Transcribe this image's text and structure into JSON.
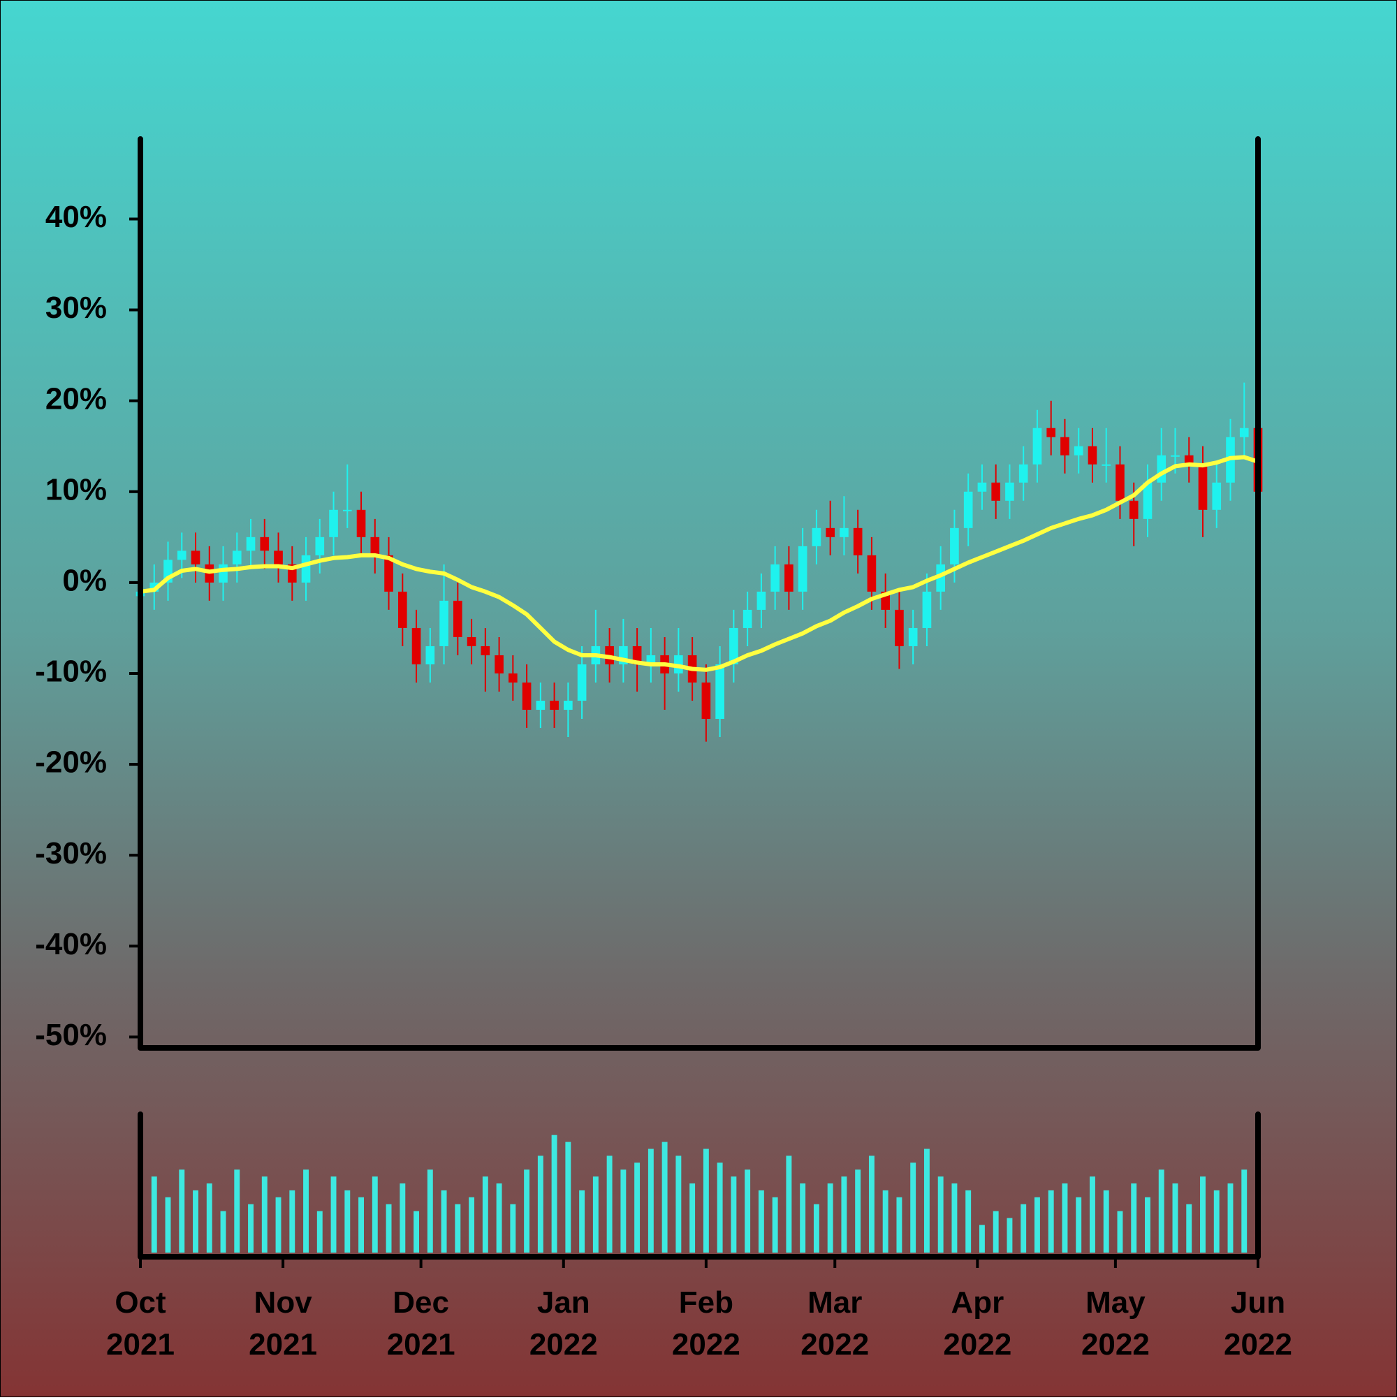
{
  "chart_data": {
    "type": "candlestick",
    "x": [
      0,
      3,
      6,
      9,
      12,
      15,
      18,
      21,
      24,
      27,
      30,
      33,
      36,
      39,
      42,
      45,
      48,
      51,
      54,
      57,
      60,
      63,
      66,
      69,
      72,
      75,
      78,
      81,
      84,
      87,
      90,
      93,
      96,
      99,
      102,
      105,
      108,
      111,
      114,
      117,
      120,
      123,
      126,
      129,
      132,
      135,
      138,
      141,
      144,
      147,
      150,
      153,
      156,
      159,
      162,
      165,
      168,
      171,
      174,
      177,
      180,
      183,
      186,
      189,
      192,
      195,
      198,
      201,
      204,
      207,
      210,
      213,
      216,
      219,
      222,
      225,
      228,
      231,
      234,
      237,
      240,
      243
    ],
    "open": [
      -1.5,
      -1,
      0,
      2.5,
      3.5,
      2,
      0,
      2,
      3.5,
      5,
      3.5,
      2,
      0,
      3,
      5,
      8,
      8,
      5,
      3,
      -1,
      -5,
      -9,
      -7,
      -2,
      -6,
      -7,
      -8,
      -10,
      -11,
      -14,
      -13,
      -14,
      -13,
      -9,
      -7,
      -9,
      -7,
      -9,
      -8,
      -10,
      -8,
      -11,
      -15,
      -9,
      -5,
      -3,
      -1,
      2,
      -1,
      4,
      6,
      5,
      6,
      3,
      -1,
      -3,
      -7,
      -5,
      -1,
      2,
      6,
      10,
      11,
      9,
      11,
      13,
      17,
      16,
      14,
      15,
      13,
      13,
      9,
      7,
      11,
      14,
      14,
      13,
      8,
      11,
      16,
      17
    ],
    "high": [
      1,
      2,
      4.5,
      5.5,
      5.5,
      4,
      4,
      5.5,
      7,
      7,
      5.5,
      4,
      5,
      7,
      10,
      13,
      10,
      7,
      5,
      1,
      -3,
      -5,
      2,
      0,
      -4,
      -5,
      -6,
      -8,
      -9,
      -11,
      -11,
      -11,
      -7,
      -3,
      -5,
      -4,
      -5,
      -5,
      -6,
      -5,
      -6,
      -9,
      -7,
      -3,
      -1,
      1,
      4,
      4,
      6,
      8,
      9,
      9.5,
      8,
      5,
      1,
      -1,
      -3,
      1,
      4,
      8,
      12,
      13,
      13,
      13,
      15,
      19,
      20,
      18,
      17,
      17,
      17,
      15,
      11,
      13,
      17,
      17,
      16,
      15,
      13,
      18,
      22,
      19
    ],
    "low": [
      -3.5,
      -3,
      -2,
      0.5,
      0,
      -2,
      -2,
      0,
      1.5,
      1.5,
      0,
      -2,
      -2,
      1,
      3,
      6,
      3,
      1,
      -3,
      -7,
      -11,
      -11,
      -9,
      -8,
      -9,
      -12,
      -12,
      -13,
      -16,
      -16,
      -16,
      -17,
      -15,
      -11,
      -11,
      -11,
      -12,
      -11,
      -14,
      -12,
      -13,
      -17.5,
      -17,
      -11,
      -7,
      -5,
      -3,
      -3,
      -3,
      2,
      3,
      3,
      1,
      -3,
      -5,
      -9.5,
      -9,
      -7,
      -3,
      0,
      4,
      8,
      7,
      7,
      9,
      11,
      14,
      12,
      12,
      11,
      11,
      7,
      4,
      5,
      9,
      12,
      11,
      5,
      6,
      9,
      14,
      7.5
    ],
    "close": [
      -1,
      0,
      2.5,
      3.5,
      2,
      0,
      2,
      3.5,
      5,
      3.5,
      2,
      0,
      3,
      5,
      8,
      8,
      5,
      3,
      -1,
      -5,
      -9,
      -7,
      -2,
      -6,
      -7,
      -8,
      -10,
      -11,
      -14,
      -13,
      -14,
      -13,
      -9,
      -7,
      -9,
      -7,
      -9,
      -8,
      -10,
      -8,
      -11,
      -15,
      -9,
      -5,
      -3,
      -1,
      2,
      -1,
      4,
      6,
      5,
      6,
      3,
      -1,
      -3,
      -7,
      -5,
      -1,
      2,
      6,
      10,
      11,
      9,
      11,
      13,
      17,
      16,
      14,
      15,
      13,
      13,
      9,
      7,
      11,
      14,
      14,
      13,
      8,
      11,
      16,
      17,
      10
    ],
    "up_color": "#1ff2ee",
    "down_color": "#e00000",
    "moving_average": {
      "color": "#ffff40",
      "values": [
        -1,
        -0.8,
        0.5,
        1.3,
        1.5,
        1.2,
        1.4,
        1.5,
        1.7,
        1.8,
        1.8,
        1.6,
        2,
        2.4,
        2.7,
        2.8,
        3,
        3,
        2.7,
        2,
        1.5,
        1.2,
        1,
        0.3,
        -0.5,
        -1,
        -1.6,
        -2.5,
        -3.5,
        -5,
        -6.5,
        -7.4,
        -8,
        -8,
        -8.2,
        -8.5,
        -8.8,
        -9,
        -9,
        -9.2,
        -9.5,
        -9.6,
        -9.3,
        -8.7,
        -8,
        -7.5,
        -6.8,
        -6.2,
        -5.6,
        -4.8,
        -4.2,
        -3.3,
        -2.6,
        -1.8,
        -1.3,
        -0.8,
        -0.5,
        0.2,
        0.8,
        1.5,
        2.2,
        2.8,
        3.4,
        4,
        4.6,
        5.3,
        6,
        6.5,
        7,
        7.4,
        8,
        8.8,
        9.6,
        11,
        12,
        12.8,
        13,
        12.9,
        13.2,
        13.7,
        13.8,
        13.3
      ]
    },
    "volume": {
      "color": "#3ee8e0",
      "ylim": [
        0,
        100
      ],
      "values": [
        20,
        55,
        40,
        60,
        45,
        50,
        30,
        60,
        35,
        55,
        40,
        45,
        60,
        30,
        55,
        45,
        40,
        55,
        35,
        50,
        30,
        60,
        45,
        35,
        40,
        55,
        50,
        35,
        60,
        70,
        85,
        80,
        45,
        55,
        70,
        60,
        65,
        75,
        80,
        70,
        50,
        75,
        65,
        55,
        60,
        45,
        40,
        70,
        50,
        35,
        50,
        55,
        60,
        70,
        45,
        40,
        65,
        75,
        55,
        50,
        45,
        20,
        30,
        25,
        35,
        40,
        45,
        50,
        40,
        55,
        45,
        30,
        50,
        40,
        60,
        50,
        35,
        55,
        45,
        50,
        60,
        40
      ]
    },
    "xlim": [
      0,
      243
    ],
    "xticks": [
      {
        "value": 0,
        "label": "Oct 2021"
      },
      {
        "value": 31,
        "label": "Nov 2021"
      },
      {
        "value": 61,
        "label": "Dec 2021"
      },
      {
        "value": 92,
        "label": "Jan 2022"
      },
      {
        "value": 123,
        "label": "Feb 2022"
      },
      {
        "value": 151,
        "label": "Mar 2022"
      },
      {
        "value": 182,
        "label": "Apr 2022"
      },
      {
        "value": 212,
        "label": "May 2022"
      },
      {
        "value": 243,
        "label": "Jun 2022"
      }
    ],
    "ylim": [
      -51.2,
      48.8
    ],
    "yticks": [
      {
        "value": -50,
        "label": "-50%"
      },
      {
        "value": -40,
        "label": "-40%"
      },
      {
        "value": -30,
        "label": "-30%"
      },
      {
        "value": -20,
        "label": "-20%"
      },
      {
        "value": -10,
        "label": "-10%"
      },
      {
        "value": 0,
        "label": "0%"
      },
      {
        "value": 10,
        "label": "10%"
      },
      {
        "value": 20,
        "label": "20%"
      },
      {
        "value": 30,
        "label": "30%"
      },
      {
        "value": 40,
        "label": "40%"
      }
    ]
  }
}
